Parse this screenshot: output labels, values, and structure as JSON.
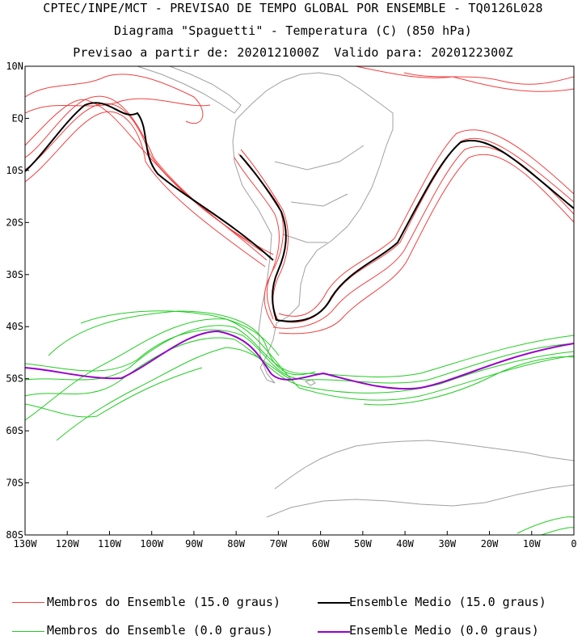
{
  "title_line1": "CPTEC/INPE/MCT - PREVISAO DE TEMPO GLOBAL POR ENSEMBLE - TQ0126L028",
  "title_line2": "Diagrama \"Spaguetti\" - Temperatura (C) (850 hPa)",
  "title_line3": "Previsao a partir de: 2020121000Z  Valido para: 2020122300Z",
  "lat_labels": [
    "10N",
    "EQ",
    "10S",
    "20S",
    "30S",
    "40S",
    "50S",
    "60S",
    "70S",
    "80S"
  ],
  "lon_labels": [
    "130W",
    "120W",
    "110W",
    "100W",
    "90W",
    "80W",
    "70W",
    "60W",
    "50W",
    "40W",
    "30W",
    "20W",
    "10W",
    "0"
  ],
  "colors": {
    "members_15": "#f04040",
    "mean_15": "#000000",
    "members_0": "#22cc22",
    "mean_0": "#9900cc",
    "land": "#a0a0a0"
  },
  "legend": [
    {
      "label": "Membros do Ensemble (15.0 graus)",
      "color": "#f04040"
    },
    {
      "label": "Ensemble Medio (15.0 graus)",
      "color": "#000000"
    },
    {
      "label": "Membros do Ensemble (0.0 graus)",
      "color": "#22cc22"
    },
    {
      "label": "Ensemble Medio (0.0 graus)",
      "color": "#9900cc"
    }
  ]
}
